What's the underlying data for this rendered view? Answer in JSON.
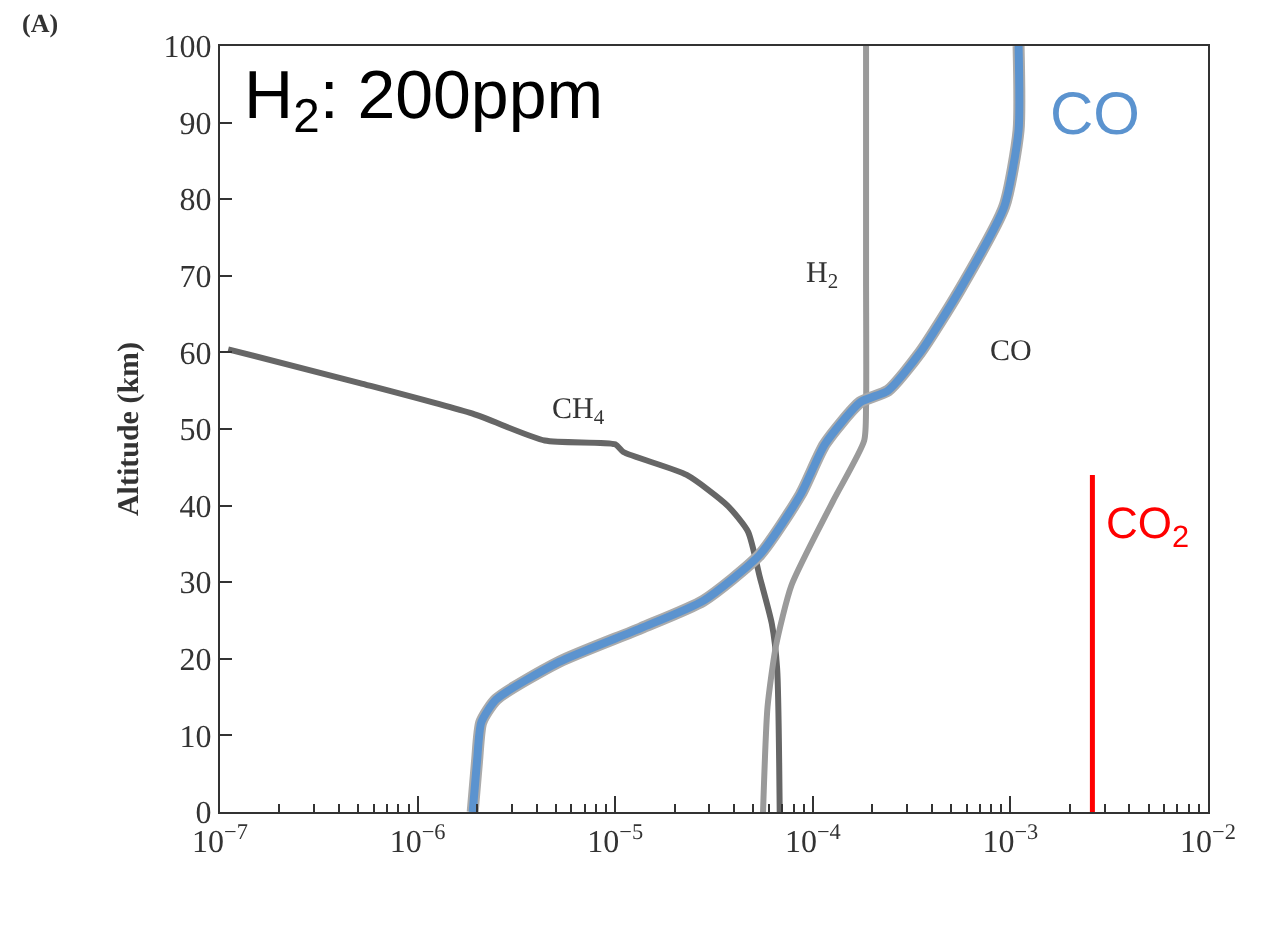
{
  "chart_data": {
    "type": "line",
    "ylabel": "Altitude (km)",
    "annotations": [
      "(A)",
      "H$_{2}$: 200ppm"
    ],
    "xlim": [
      1e-07,
      0.01
    ],
    "log": "x",
    "xticks": [
      {
        "value": 1e-07,
        "label": "10$^{−7}$"
      },
      {
        "value": 1e-06,
        "label": "10$^{−6}$"
      },
      {
        "value": 1e-05,
        "label": "10$^{−5}$"
      },
      {
        "value": 0.0001,
        "label": "10$^{−4}$"
      },
      {
        "value": 0.001,
        "label": "10$^{−3}$"
      },
      {
        "value": 0.01,
        "label": "10$^{−2}$"
      }
    ],
    "ylim": [
      0,
      100
    ],
    "yticks": [
      0,
      10,
      20,
      30,
      40,
      50,
      60,
      70,
      80,
      90,
      100
    ],
    "legend": false,
    "marker": "none",
    "line_style": "solid",
    "series": [
      {
        "name": "CH$_{4}$",
        "color": "#666666",
        "x": [
          1.1e-07,
          5.1e-07,
          1.9e-06,
          4.4e-06,
          1e-05,
          1.1e-05,
          2.3e-05,
          3.7e-05,
          4.7e-05,
          5.4e-05,
          6.2e-05,
          6.6e-05,
          6.8e-05
        ],
        "values": [
          60.4,
          56,
          52,
          48.5,
          48,
          47,
          44,
          40,
          36.6,
          30.6,
          24.6,
          18.7,
          0
        ]
      },
      {
        "name": "H$_{2}$",
        "color": "#9a9a9a",
        "x": [
          0.000186,
          0.000186,
          0.000186,
          0.000182,
          0.000126,
          7.8e-05,
          6.5e-05,
          5.9e-05,
          5.6e-05
        ],
        "values": [
          100,
          70,
          53,
          48.5,
          40.5,
          29.6,
          21.6,
          13.7,
          0
        ]
      },
      {
        "name": "CO",
        "color": "#ababab",
        "x": [
          0.0011,
          0.0011,
          0.00093,
          0.00055,
          0.00035,
          0.00024,
          0.000174,
          0.000115,
          8.7e-05,
          5.4e-05,
          2.8e-05,
          1.35e-05,
          5.2e-06,
          2.5e-06,
          2.1e-06,
          2e-06,
          1.9e-06
        ],
        "values": [
          100,
          89,
          79,
          68,
          60,
          55,
          53.5,
          48,
          41.5,
          33.6,
          27.6,
          24,
          19.6,
          14.7,
          11.7,
          6.7,
          0
        ]
      },
      {
        "name": "CO",
        "color": "#5b93cf",
        "x": [
          0.0011,
          0.0011,
          0.00093,
          0.00055,
          0.00035,
          0.00024,
          0.000174,
          0.000115,
          8.7e-05,
          5.4e-05,
          2.8e-05,
          1.35e-05,
          5.2e-06,
          2.5e-06,
          2.1e-06,
          2e-06,
          1.9e-06
        ],
        "values": [
          100,
          89,
          79,
          68,
          60,
          55,
          53.5,
          48,
          41.5,
          33.6,
          27.6,
          24,
          19.6,
          14.7,
          11.7,
          6.7,
          0
        ]
      },
      {
        "name": "CO$_{2}$",
        "color": "#ff0000",
        "x": [
          0.0026,
          0.0026
        ],
        "values": [
          0,
          44
        ]
      }
    ]
  }
}
